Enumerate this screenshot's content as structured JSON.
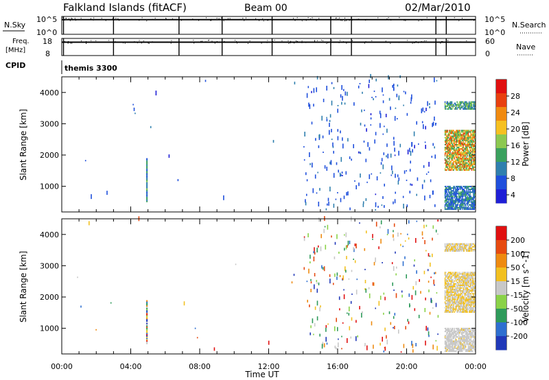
{
  "header": {
    "title": "Falkland Islands (fitACF)",
    "beam": "Beam 00",
    "date": "02/Mar/2010"
  },
  "top_panels": {
    "nsky_label": "N.Sky",
    "nsky_ticks": [
      "10^5",
      "10^0"
    ],
    "nsky_right_ticks": [
      "10^5",
      "10^0"
    ],
    "nsearch_label": "N.Search",
    "freq_label_line1": "Freq.",
    "freq_label_line2": "[MHz]",
    "freq_ticks": [
      "18",
      "8"
    ],
    "nave_ticks": [
      "60",
      "0"
    ],
    "nave_label": "Nave",
    "cpid_label": "CPID",
    "cpid_value": "themis 3300"
  },
  "colors": {
    "power_scale": [
      "#1f1fd6",
      "#1f4fdc",
      "#2f7fae",
      "#3aa05e",
      "#8cc850",
      "#f6c020",
      "#f08a10",
      "#e8400f",
      "#e01010"
    ],
    "velocity_scale": [
      "#2038b8",
      "#2e6fd0",
      "#2e9a5a",
      "#8ad248",
      "#c8c8c8",
      "#f2c020",
      "#ee8a10",
      "#e64a10",
      "#e01010"
    ]
  },
  "chart_data": [
    {
      "type": "heatmap",
      "name_label": "Power",
      "xlabel": "Time UT",
      "ylabel": "Slant Range [km]",
      "xlim_hours": [
        0,
        24
      ],
      "ylim_km": [
        180,
        4500
      ],
      "x_tick_labels": [
        "00:00",
        "04:00",
        "08:00",
        "12:00",
        "16:00",
        "20:00",
        "00:00"
      ],
      "y_tick_labels": [
        "1000",
        "2000",
        "3000",
        "4000"
      ],
      "colorbar_title": "Power [dB]",
      "colorbar_ticks": [
        "28",
        "24",
        "20",
        "16",
        "12",
        "8",
        "4"
      ],
      "colorbar_range": [
        0,
        30
      ],
      "features": [
        {
          "kind": "sparse_scatter",
          "hours": [
            14.0,
            21.8
          ],
          "range_km": [
            200,
            4500
          ],
          "value_range": [
            3,
            8
          ],
          "density": "high"
        },
        {
          "kind": "sparse_scatter",
          "hours": [
            0.2,
            13.9
          ],
          "range_km": [
            200,
            4500
          ],
          "value_range": [
            3,
            8
          ],
          "density": "very_low"
        },
        {
          "kind": "vertical_streak",
          "hour": 4.9,
          "range_km": [
            500,
            1900
          ],
          "value_range": [
            4,
            14
          ]
        },
        {
          "kind": "echo_band",
          "hours": [
            22.2,
            24.0
          ],
          "range_km": [
            3450,
            3720
          ],
          "value_range": [
            6,
            16
          ]
        },
        {
          "kind": "echo_band",
          "hours": [
            22.2,
            24.0
          ],
          "range_km": [
            1500,
            2800
          ],
          "value_range": [
            10,
            26
          ]
        },
        {
          "kind": "echo_band",
          "hours": [
            22.2,
            24.0
          ],
          "range_km": [
            250,
            1000
          ],
          "value_range": [
            4,
            12
          ]
        }
      ]
    },
    {
      "type": "heatmap",
      "name_label": "Velocity",
      "xlabel": "Time UT",
      "ylabel": "Slant Range [km]",
      "xlim_hours": [
        0,
        24
      ],
      "ylim_km": [
        180,
        4500
      ],
      "x_tick_labels": [
        "00:00",
        "04:00",
        "08:00",
        "12:00",
        "16:00",
        "20:00",
        "00:00"
      ],
      "y_tick_labels": [
        "1000",
        "2000",
        "3000",
        "4000"
      ],
      "colorbar_title": "Velocity [m s^-1]",
      "colorbar_ticks": [
        "200",
        "100",
        "50",
        "15",
        "-15",
        "-50",
        "-100",
        "-200"
      ],
      "colorbar_range": [
        -250,
        250
      ],
      "features": [
        {
          "kind": "sparse_scatter",
          "hours": [
            14.0,
            21.8
          ],
          "range_km": [
            200,
            4500
          ],
          "value_range": [
            -250,
            250
          ],
          "density": "high"
        },
        {
          "kind": "sparse_scatter",
          "hours": [
            0.2,
            13.9
          ],
          "range_km": [
            200,
            4500
          ],
          "value_range": [
            -250,
            250
          ],
          "density": "very_low"
        },
        {
          "kind": "vertical_streak",
          "hour": 4.9,
          "range_km": [
            500,
            1900
          ],
          "value_range": [
            -250,
            250
          ]
        },
        {
          "kind": "echo_band",
          "hours": [
            22.2,
            24.0
          ],
          "range_km": [
            3450,
            3720
          ],
          "value_range": [
            -60,
            10
          ]
        },
        {
          "kind": "echo_band",
          "hours": [
            22.2,
            24.0
          ],
          "range_km": [
            1500,
            2800
          ],
          "value_range": [
            -60,
            10
          ]
        },
        {
          "kind": "echo_band",
          "hours": [
            22.2,
            24.0
          ],
          "range_km": [
            250,
            1000
          ],
          "value_range": [
            -30,
            10
          ]
        }
      ]
    },
    {
      "type": "line",
      "name_label": "N.Sky",
      "baseline_level": 0.82,
      "dropout_hours": [
        0.1,
        3.0,
        6.8,
        9.3,
        12.2,
        15.6,
        16.8,
        21.7,
        22.3
      ]
    },
    {
      "type": "line",
      "name_label": "Freq.",
      "baseline_level": 0.78,
      "dropout_hours": [
        0.1,
        3.0,
        6.8,
        9.3,
        12.2,
        15.6,
        16.8,
        21.7,
        22.3
      ]
    }
  ]
}
